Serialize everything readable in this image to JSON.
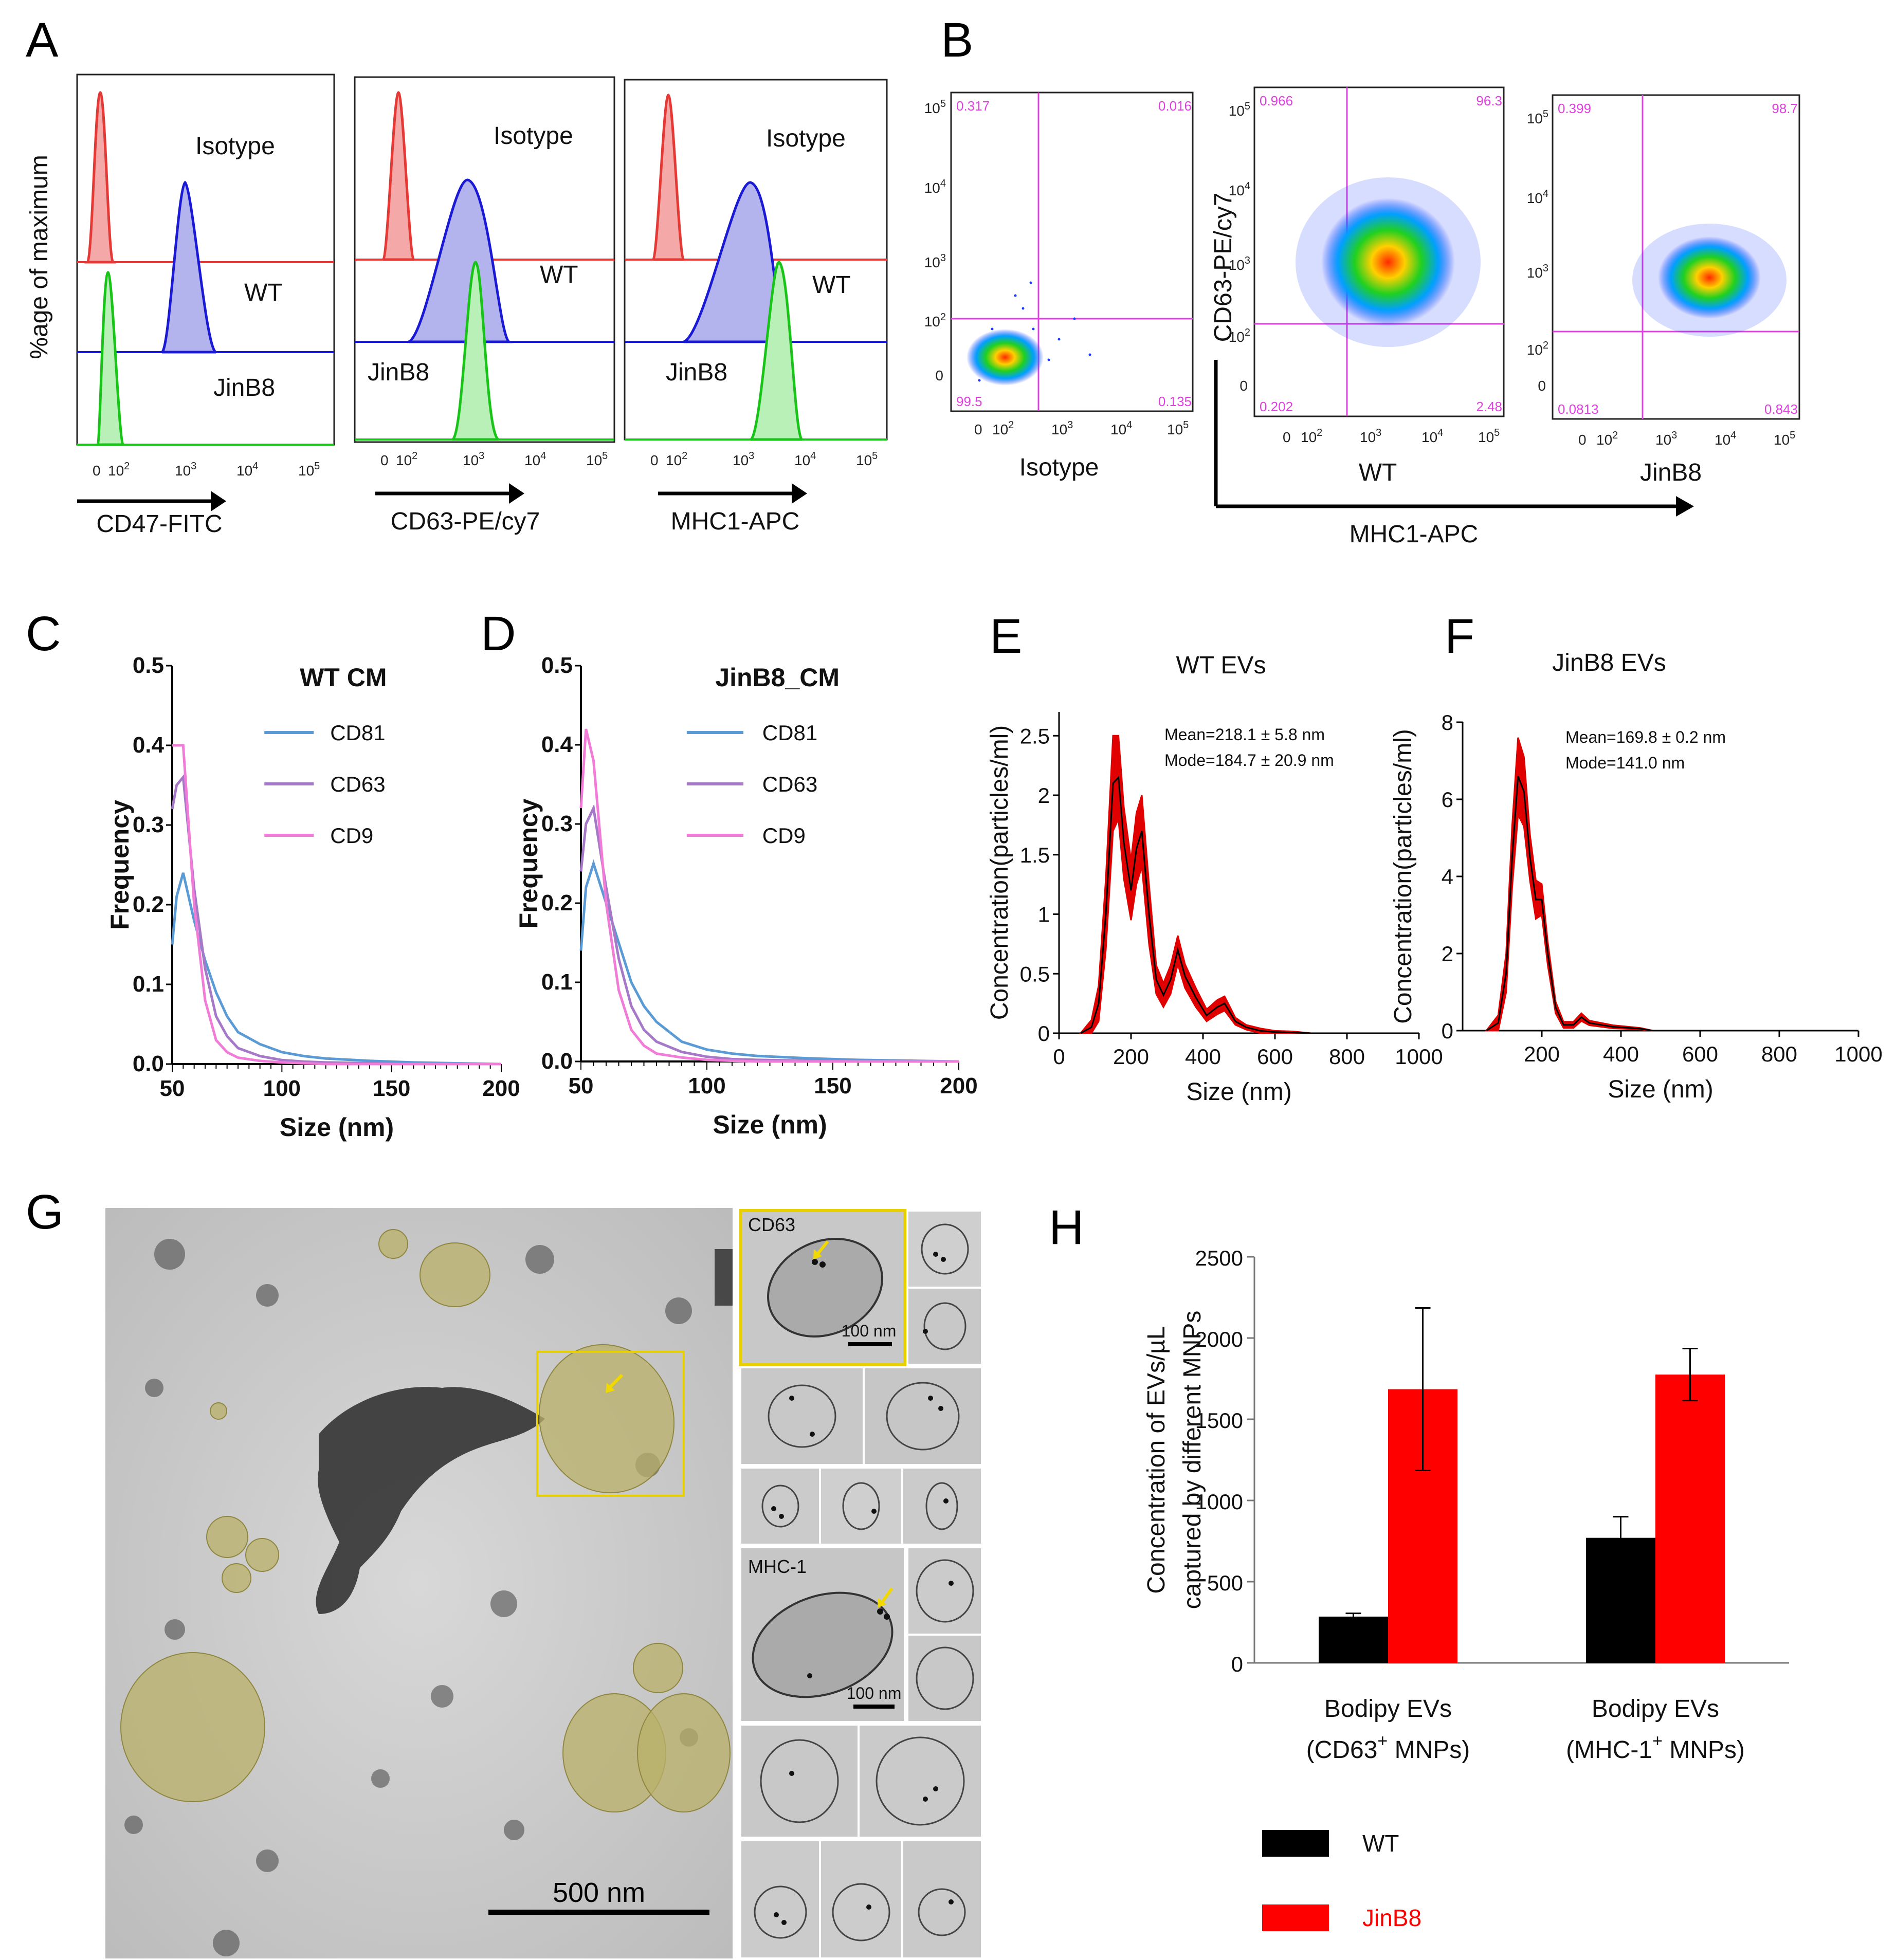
{
  "panels": {
    "A": {
      "letter": "A",
      "ylabel": "%age of maximum",
      "plots": [
        {
          "xlabel": "CD47-FITC",
          "labels": {
            "isotype": "Isotype",
            "wt": "WT",
            "jinb8": "JinB8"
          }
        },
        {
          "xlabel": "CD63-PE/cy7",
          "labels": {
            "isotype": "Isotype",
            "wt": "WT",
            "jinb8": "JinB8"
          }
        },
        {
          "xlabel": "MHC1-APC",
          "labels": {
            "isotype": "Isotype",
            "wt": "WT",
            "jinb8": "JinB8"
          }
        }
      ],
      "x_ticks": {
        "zero": "0",
        "t2": "10",
        "t3": "10",
        "t4": "10",
        "t5": "10",
        "e2": "2",
        "e3": "3",
        "e4": "4",
        "e5": "5"
      },
      "colors": {
        "isotype": "#e53935",
        "wt": "#1a1ad6",
        "jinb8": "#18c418"
      }
    },
    "B": {
      "letter": "B",
      "ylabel": "CD63-PE/cy7",
      "xlabel": "MHC1-APC",
      "plots": [
        {
          "name": "Isotype",
          "q_tl": "0.317",
          "q_tr": "0.016",
          "q_bl": "99.5",
          "q_br": "0.135"
        },
        {
          "name": "WT",
          "q_tl": "0.966",
          "q_tr": "96.3",
          "q_bl": "0.202",
          "q_br": "2.48"
        },
        {
          "name": "JinB8",
          "q_tl": "0.399",
          "q_tr": "98.7",
          "q_bl": "0.0813",
          "q_br": "0.843"
        }
      ],
      "y_ticks": {
        "zero": "0",
        "base": "10",
        "e2": "2",
        "e3": "3",
        "e4": "4",
        "e5": "5"
      }
    },
    "C": {
      "letter": "C",
      "title": "WT CM"
    },
    "D": {
      "letter": "D",
      "title": "JinB8_CM"
    },
    "E": {
      "letter": "E",
      "title": "WT EVs",
      "annot_mean": "Mean=218.1 ± 5.8 nm",
      "annot_mode": "Mode=184.7 ± 20.9 nm"
    },
    "F": {
      "letter": "F",
      "title": "JinB8 EVs",
      "annot_mean": "Mean=169.8 ± 0.2 nm",
      "annot_mode": "Mode=141.0 nm"
    },
    "G": {
      "letter": "G",
      "scale_main": "500 nm",
      "inset1_label": "CD63",
      "inset1_scale": "100 nm",
      "inset2_label": "MHC-1",
      "inset2_scale": "100 nm"
    },
    "H": {
      "letter": "H"
    }
  },
  "chart_data": [
    {
      "id": "C",
      "type": "line",
      "title": "WT CM",
      "xlabel": "Size (nm)",
      "ylabel": "Frequency",
      "xlim": [
        50,
        200
      ],
      "ylim": [
        0,
        0.5
      ],
      "x_ticks": [
        50,
        100,
        150,
        200
      ],
      "y_ticks": [
        "0.0",
        "0.1",
        "0.2",
        "0.3",
        "0.4",
        "0.5"
      ],
      "x": [
        50,
        52,
        55,
        60,
        65,
        70,
        75,
        80,
        90,
        100,
        110,
        120,
        140,
        160,
        200
      ],
      "series": [
        {
          "name": "CD81",
          "color": "#5b9bd5",
          "values": [
            0.15,
            0.21,
            0.24,
            0.18,
            0.13,
            0.09,
            0.06,
            0.04,
            0.025,
            0.015,
            0.01,
            0.007,
            0.004,
            0.002,
            0.0
          ]
        },
        {
          "name": "CD63",
          "color": "#a678c8",
          "values": [
            0.32,
            0.35,
            0.36,
            0.22,
            0.12,
            0.06,
            0.035,
            0.02,
            0.01,
            0.005,
            0.003,
            0.002,
            0.001,
            0.0,
            0.0
          ]
        },
        {
          "name": "CD9",
          "color": "#f07cd8",
          "values": [
            0.4,
            0.4,
            0.4,
            0.2,
            0.08,
            0.03,
            0.015,
            0.008,
            0.004,
            0.002,
            0.001,
            0.0,
            0.0,
            0.0,
            0.0
          ]
        }
      ]
    },
    {
      "id": "D",
      "type": "line",
      "title": "JinB8_CM",
      "xlabel": "Size (nm)",
      "ylabel": "Frequency",
      "xlim": [
        50,
        200
      ],
      "ylim": [
        0,
        0.5
      ],
      "x_ticks": [
        50,
        100,
        150,
        200
      ],
      "y_ticks": [
        "0.0",
        "0.1",
        "0.2",
        "0.3",
        "0.4",
        "0.5"
      ],
      "x": [
        50,
        52,
        55,
        60,
        65,
        70,
        75,
        80,
        90,
        100,
        110,
        120,
        140,
        160,
        200
      ],
      "series": [
        {
          "name": "CD81",
          "color": "#5b9bd5",
          "values": [
            0.14,
            0.22,
            0.25,
            0.2,
            0.15,
            0.1,
            0.07,
            0.05,
            0.025,
            0.015,
            0.01,
            0.007,
            0.004,
            0.002,
            0.0
          ]
        },
        {
          "name": "CD63",
          "color": "#a678c8",
          "values": [
            0.24,
            0.3,
            0.32,
            0.22,
            0.13,
            0.07,
            0.04,
            0.025,
            0.012,
            0.006,
            0.003,
            0.002,
            0.001,
            0.0,
            0.0
          ]
        },
        {
          "name": "CD9",
          "color": "#f07cd8",
          "values": [
            0.32,
            0.42,
            0.38,
            0.2,
            0.09,
            0.04,
            0.02,
            0.01,
            0.005,
            0.002,
            0.001,
            0.0,
            0.0,
            0.0,
            0.0
          ]
        }
      ]
    },
    {
      "id": "E",
      "type": "line",
      "title": "WT EVs",
      "xlabel": "Size (nm)",
      "ylabel": "Concentration(particles/ml)",
      "xlim": [
        0,
        1000
      ],
      "ylim": [
        0,
        2.7
      ],
      "x_ticks": [
        0,
        200,
        400,
        600,
        800,
        1000
      ],
      "y_ticks": [
        "0",
        "0.5",
        "1",
        "1.5",
        "2",
        "2.5"
      ],
      "x": [
        60,
        90,
        110,
        130,
        150,
        165,
        180,
        200,
        215,
        230,
        250,
        270,
        290,
        310,
        330,
        350,
        380,
        410,
        440,
        460,
        490,
        520,
        560,
        600,
        650,
        700
      ],
      "series": [
        {
          "name": "mean",
          "color": "#000000",
          "values": [
            0,
            0.05,
            0.25,
            1.0,
            2.1,
            2.15,
            1.6,
            1.2,
            1.55,
            1.7,
            1.0,
            0.45,
            0.32,
            0.45,
            0.7,
            0.48,
            0.3,
            0.15,
            0.22,
            0.25,
            0.1,
            0.05,
            0.02,
            0.01,
            0.005,
            0
          ],
          "error_band": [
            0,
            0.06,
            0.15,
            0.3,
            0.4,
            0.35,
            0.3,
            0.25,
            0.3,
            0.3,
            0.25,
            0.12,
            0.1,
            0.12,
            0.12,
            0.1,
            0.08,
            0.05,
            0.06,
            0.06,
            0.03,
            0.02,
            0.02,
            0.01,
            0.01,
            0
          ]
        }
      ]
    },
    {
      "id": "F",
      "type": "line",
      "title": "JinB8 EVs",
      "xlabel": "Size (nm)",
      "ylabel": "Concentration(particles/ml)",
      "xlim": [
        0,
        1000
      ],
      "ylim": [
        0,
        8
      ],
      "x_ticks": [
        200,
        400,
        600,
        800,
        1000
      ],
      "y_ticks": [
        "0",
        "2",
        "4",
        "6",
        "8"
      ],
      "x": [
        60,
        90,
        110,
        125,
        140,
        155,
        170,
        185,
        200,
        215,
        235,
        255,
        280,
        300,
        320,
        350,
        380,
        410,
        450,
        480
      ],
      "series": [
        {
          "name": "mean",
          "color": "#000000",
          "values": [
            0,
            0.2,
            1.5,
            4.5,
            6.6,
            6.2,
            4.5,
            3.4,
            3.4,
            2.0,
            0.6,
            0.15,
            0.15,
            0.35,
            0.2,
            0.15,
            0.1,
            0.08,
            0.05,
            0
          ],
          "error_band": [
            0,
            0.2,
            0.5,
            0.8,
            1.0,
            0.9,
            0.6,
            0.5,
            0.4,
            0.3,
            0.15,
            0.08,
            0.08,
            0.1,
            0.06,
            0.05,
            0.04,
            0.03,
            0.02,
            0
          ]
        }
      ]
    },
    {
      "id": "H",
      "type": "bar",
      "ylabel": "Concentration of EVs/µL",
      "ylabel2": "captured by different MNPs",
      "ylim": [
        0,
        2500
      ],
      "y_ticks": [
        "0",
        "500",
        "1000",
        "1500",
        "2000",
        "2500"
      ],
      "categories": [
        {
          "line1": "Bodipy EVs",
          "line2": "(CD63",
          "sup": "+",
          "line2b": " MNPs)"
        },
        {
          "line1": "Bodipy EVs",
          "line2": "(MHC-1",
          "sup": "+",
          "line2b": " MNPs)"
        }
      ],
      "series": [
        {
          "name": "WT",
          "color": "#000000",
          "values": [
            285,
            770
          ],
          "errors": [
            20,
            130
          ]
        },
        {
          "name": "JinB8",
          "color": "#ff0000",
          "values": [
            1685,
            1775
          ],
          "errors": [
            500,
            160
          ]
        }
      ]
    }
  ]
}
